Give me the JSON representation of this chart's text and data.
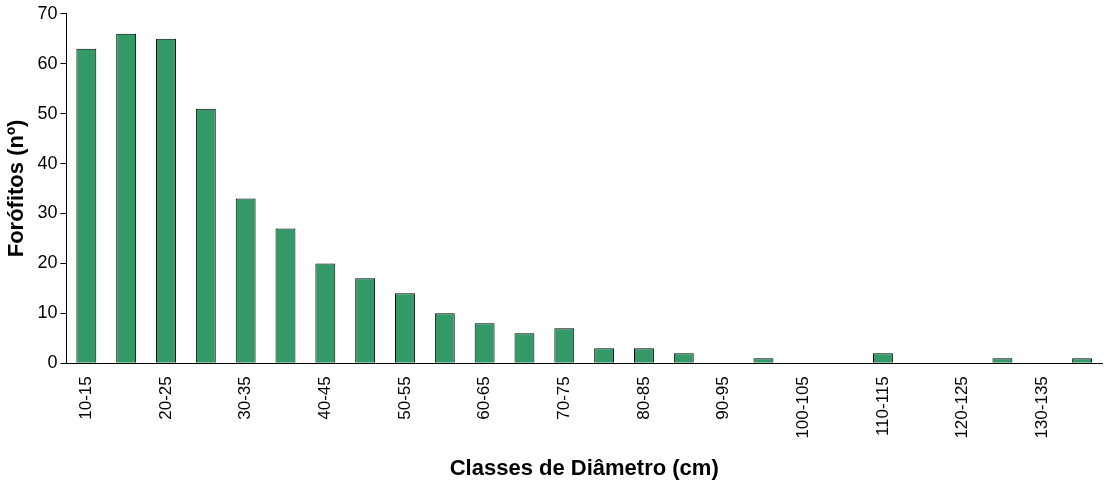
{
  "chart_data": {
    "type": "bar",
    "xlabel": "Classes de Diâmetro (cm)",
    "ylabel": "Forófitos (nº)",
    "categories": [
      "10-15",
      null,
      "20-25",
      null,
      "30-35",
      null,
      "40-45",
      null,
      "50-55",
      null,
      "60-65",
      null,
      "70-75",
      null,
      "80-85",
      null,
      "90-95",
      null,
      "100-105",
      null,
      "110-115",
      null,
      "120-125",
      null,
      "130-135",
      null
    ],
    "values": [
      63,
      66,
      65,
      51,
      33,
      27,
      20,
      17,
      14,
      10,
      8,
      6,
      7,
      3,
      3,
      2,
      0,
      1,
      0,
      0,
      2,
      0,
      0,
      1,
      0,
      1
    ],
    "color": "#339966",
    "ylim": [
      0,
      70
    ],
    "yticks": [
      0,
      10,
      20,
      30,
      40,
      50,
      60,
      70
    ],
    "grid": false,
    "legend": false
  }
}
